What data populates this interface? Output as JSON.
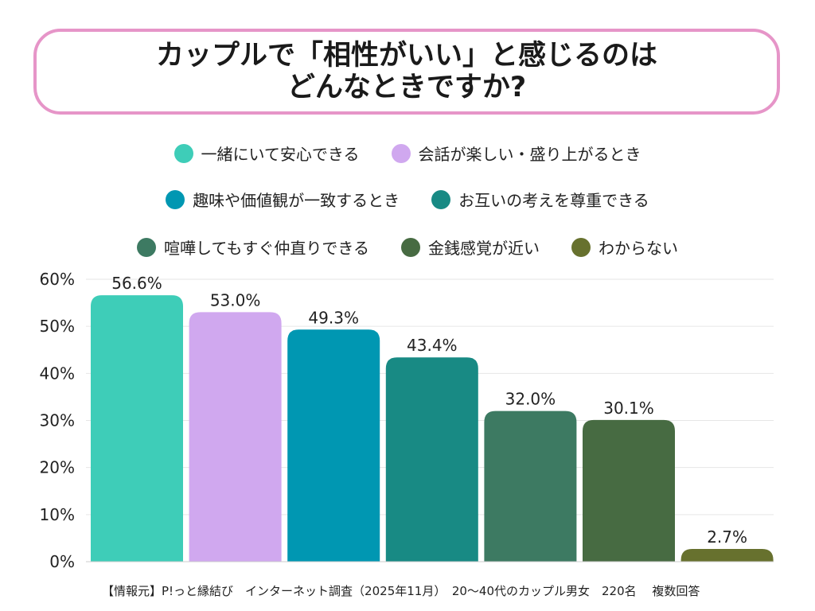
{
  "title": "カップルで「相性がいい」と感じるのは\nどんなときですか?",
  "legend_rows": [
    [
      0,
      1
    ],
    [
      2,
      3
    ],
    [
      4,
      5,
      6
    ]
  ],
  "chart_data": {
    "type": "bar",
    "categories": [
      "一緒にいて安心できる",
      "会話が楽しい・盛り上がるとき",
      "趣味や価値観が一致するとき",
      "お互いの考えを尊重できる",
      "喧嘩してもすぐ仲直りできる",
      "金銭感覚が近い",
      "わからない"
    ],
    "values": [
      56.6,
      53.0,
      49.3,
      43.4,
      32.0,
      30.1,
      2.7
    ],
    "data_labels": [
      "56.6%",
      "53.0%",
      "49.3%",
      "43.4%",
      "32.0%",
      "30.1%",
      "2.7%"
    ],
    "colors": [
      "#3ecdb8",
      "#d0a8ef",
      "#0097b2",
      "#188a84",
      "#3d7a62",
      "#476b42",
      "#67712e"
    ],
    "ylim": [
      0,
      60
    ],
    "yticks": [
      "0%",
      "10%",
      "20%",
      "30%",
      "40%",
      "50%",
      "60%"
    ],
    "grid": true,
    "legend": "top",
    "xlabel": "",
    "ylabel": ""
  },
  "footer": "【情報元】P!っと縁結び　インターネット調査（2025年11月）　20〜40代のカップル男女　220名　 複数回答"
}
